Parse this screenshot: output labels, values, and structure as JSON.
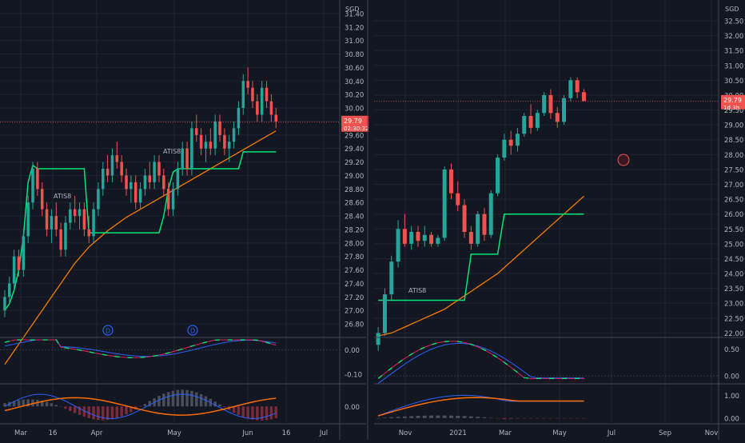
{
  "theme": {
    "background": "#131722",
    "grid": "#1f2433",
    "divider": "#434651",
    "axis_text": "#b2b5be",
    "up": "#26a69a",
    "down": "#ef5350",
    "supertrend": "#00e676",
    "ma": "#f57c00",
    "macd": "#2962ff",
    "signal": "#ff6d00",
    "price_label_bg": "#ef5350"
  },
  "chart_data": [
    {
      "type": "candlestick",
      "name": "daily",
      "currency": "SGD",
      "ylim": [
        26.6,
        31.6
      ],
      "y_ticks": [
        "31.40",
        "31.20",
        "31.00",
        "30.80",
        "30.60",
        "30.40",
        "30.20",
        "30.00",
        "29.80",
        "29.60",
        "29.40",
        "29.20",
        "29.00",
        "28.80",
        "28.60",
        "28.40",
        "28.20",
        "28.00",
        "27.80",
        "27.60",
        "27.40",
        "27.20",
        "27.00",
        "26.80"
      ],
      "x_ticks": [
        "Mar",
        "16",
        "Apr",
        "May",
        "Jun",
        "16",
        "Jul"
      ],
      "last_price": "29.79",
      "countdown": "02:30:32",
      "annotations": [
        "ATIS8",
        "ATIS8"
      ],
      "markers": [
        "D",
        "D"
      ],
      "candles": [
        [
          27.0,
          27.3,
          26.9,
          27.2
        ],
        [
          27.2,
          27.5,
          27.1,
          27.4
        ],
        [
          27.4,
          27.9,
          27.3,
          27.8
        ],
        [
          27.8,
          27.9,
          27.5,
          27.6
        ],
        [
          27.6,
          28.2,
          27.5,
          28.1
        ],
        [
          28.1,
          28.7,
          28.0,
          28.6
        ],
        [
          28.6,
          29.2,
          28.5,
          29.1
        ],
        [
          29.1,
          29.2,
          28.7,
          28.8
        ],
        [
          28.8,
          28.9,
          28.4,
          28.5
        ],
        [
          28.5,
          28.6,
          28.1,
          28.2
        ],
        [
          28.2,
          28.5,
          28.0,
          28.4
        ],
        [
          28.4,
          28.6,
          28.1,
          28.2
        ],
        [
          28.2,
          28.3,
          27.8,
          27.9
        ],
        [
          27.9,
          28.4,
          27.8,
          28.3
        ],
        [
          28.3,
          28.6,
          28.2,
          28.5
        ],
        [
          28.5,
          28.7,
          28.3,
          28.4
        ],
        [
          28.4,
          28.6,
          28.2,
          28.5
        ],
        [
          28.5,
          28.6,
          28.1,
          28.2
        ],
        [
          28.2,
          28.4,
          28.0,
          28.1
        ],
        [
          28.1,
          28.6,
          28.0,
          28.5
        ],
        [
          28.5,
          28.9,
          28.4,
          28.8
        ],
        [
          28.8,
          29.2,
          28.7,
          29.1
        ],
        [
          29.1,
          29.3,
          28.9,
          29.0
        ],
        [
          29.0,
          29.4,
          28.9,
          29.3
        ],
        [
          29.3,
          29.5,
          29.1,
          29.2
        ],
        [
          29.2,
          29.3,
          28.9,
          29.0
        ],
        [
          29.0,
          29.1,
          28.7,
          28.8
        ],
        [
          28.8,
          29.0,
          28.6,
          28.9
        ],
        [
          28.9,
          29.0,
          28.5,
          28.6
        ],
        [
          28.6,
          28.9,
          28.5,
          28.8
        ],
        [
          28.8,
          29.1,
          28.7,
          29.0
        ],
        [
          29.0,
          29.2,
          28.8,
          28.9
        ],
        [
          28.9,
          29.3,
          28.8,
          29.2
        ],
        [
          29.2,
          29.3,
          28.9,
          29.0
        ],
        [
          29.0,
          29.1,
          28.7,
          28.8
        ],
        [
          28.8,
          28.9,
          28.4,
          28.5
        ],
        [
          28.5,
          28.9,
          28.4,
          28.8
        ],
        [
          28.8,
          29.2,
          28.7,
          29.1
        ],
        [
          29.1,
          29.5,
          29.0,
          29.4
        ],
        [
          29.4,
          29.5,
          29.0,
          29.1
        ],
        [
          29.1,
          29.8,
          29.0,
          29.7
        ],
        [
          29.7,
          29.9,
          29.5,
          29.6
        ],
        [
          29.6,
          29.7,
          29.3,
          29.4
        ],
        [
          29.4,
          29.6,
          29.2,
          29.5
        ],
        [
          29.5,
          29.7,
          29.3,
          29.4
        ],
        [
          29.4,
          29.9,
          29.3,
          29.8
        ],
        [
          29.8,
          29.9,
          29.5,
          29.6
        ],
        [
          29.6,
          29.7,
          29.3,
          29.4
        ],
        [
          29.4,
          29.6,
          29.2,
          29.5
        ],
        [
          29.5,
          29.8,
          29.4,
          29.7
        ],
        [
          29.7,
          30.1,
          29.6,
          30.0
        ],
        [
          30.0,
          30.5,
          29.9,
          30.4
        ],
        [
          30.4,
          30.6,
          30.2,
          30.3
        ],
        [
          30.3,
          30.4,
          30.0,
          30.1
        ],
        [
          30.1,
          30.2,
          29.8,
          29.9
        ],
        [
          29.9,
          30.4,
          29.8,
          30.3
        ],
        [
          30.3,
          30.4,
          30.0,
          30.1
        ],
        [
          30.1,
          30.2,
          29.8,
          29.9
        ],
        [
          29.9,
          30.0,
          29.7,
          29.8
        ]
      ],
      "supertrend": [
        27.0,
        27.1,
        27.3,
        27.6,
        28.1,
        28.9,
        29.15,
        29.1,
        29.1,
        29.1,
        29.1,
        29.1,
        29.1,
        29.1,
        29.1,
        29.1,
        29.1,
        29.1,
        28.15,
        28.15,
        28.15,
        28.15,
        28.15,
        28.15,
        28.15,
        28.15,
        28.15,
        28.15,
        28.15,
        28.15,
        28.15,
        28.15,
        28.15,
        28.15,
        28.4,
        28.8,
        29.05,
        29.1,
        29.1,
        29.1,
        29.1,
        29.1,
        29.1,
        29.1,
        29.1,
        29.1,
        29.1,
        29.1,
        29.1,
        29.1,
        29.1,
        29.35,
        29.35,
        29.35,
        29.35,
        29.35,
        29.35,
        29.35,
        29.35
      ],
      "moving_average": [
        26.2,
        26.3,
        26.4,
        26.5,
        26.6,
        26.7,
        26.8,
        26.9,
        27.0,
        27.1,
        27.2,
        27.3,
        27.4,
        27.5,
        27.6,
        27.7,
        27.78,
        27.86,
        27.94,
        28.0,
        28.06,
        28.12,
        28.18,
        28.23,
        28.28,
        28.33,
        28.38,
        28.42,
        28.46,
        28.5,
        28.54,
        28.58,
        28.62,
        28.66,
        28.7,
        28.74,
        28.78,
        28.82,
        28.86,
        28.9,
        28.94,
        28.98,
        29.02,
        29.06,
        29.1,
        29.14,
        29.18,
        29.22,
        29.26,
        29.3,
        29.34,
        29.38,
        29.42,
        29.46,
        29.5,
        29.54,
        29.58,
        29.62,
        29.66
      ],
      "oscillator_1": {
        "y_ticks": [
          "0.00",
          "-0.10"
        ],
        "ylim": [
          -0.14,
          0.05
        ]
      },
      "oscillator_2": {
        "y_ticks": [
          "0.00"
        ],
        "ylim": [
          -0.1,
          0.13
        ]
      }
    },
    {
      "type": "candlestick",
      "name": "weekly",
      "currency": "SGD",
      "ylim": [
        21.85,
        33.2
      ],
      "y_ticks": [
        "32.50",
        "32.00",
        "31.50",
        "31.00",
        "30.50",
        "30.00",
        "29.50",
        "29.00",
        "28.50",
        "28.00",
        "27.50",
        "27.00",
        "26.50",
        "26.00",
        "25.50",
        "25.00",
        "24.50",
        "24.00",
        "23.50",
        "23.00",
        "22.50",
        "22.00"
      ],
      "x_ticks": [
        "Nov",
        "2021",
        "Mar",
        "May",
        "Jul",
        "Sep",
        "Nov"
      ],
      "last_price": "29.79",
      "countdown": "1d 3h",
      "annotations": [
        "ATIS8"
      ],
      "candles": [
        [
          21.6,
          22.2,
          21.4,
          22.0
        ],
        [
          22.0,
          23.5,
          21.9,
          23.3
        ],
        [
          23.3,
          24.6,
          23.1,
          24.4
        ],
        [
          24.4,
          25.8,
          24.2,
          25.5
        ],
        [
          25.5,
          26.0,
          24.9,
          25.0
        ],
        [
          25.0,
          25.6,
          24.8,
          25.4
        ],
        [
          25.4,
          25.6,
          24.9,
          25.1
        ],
        [
          25.1,
          25.6,
          24.9,
          25.3
        ],
        [
          25.3,
          25.4,
          24.9,
          25.0
        ],
        [
          25.0,
          25.3,
          24.9,
          25.2
        ],
        [
          25.2,
          27.6,
          25.1,
          27.5
        ],
        [
          27.5,
          27.7,
          26.5,
          26.7
        ],
        [
          26.7,
          27.1,
          26.1,
          26.3
        ],
        [
          26.3,
          26.5,
          25.2,
          25.4
        ],
        [
          25.4,
          25.6,
          24.8,
          25.0
        ],
        [
          25.0,
          26.1,
          24.9,
          26.0
        ],
        [
          26.0,
          26.2,
          25.1,
          25.3
        ],
        [
          25.3,
          26.8,
          25.2,
          26.7
        ],
        [
          26.7,
          28.0,
          26.6,
          27.9
        ],
        [
          27.9,
          28.7,
          27.8,
          28.5
        ],
        [
          28.5,
          28.8,
          28.0,
          28.3
        ],
        [
          28.3,
          28.9,
          28.1,
          28.7
        ],
        [
          28.7,
          29.4,
          28.6,
          29.3
        ],
        [
          29.3,
          29.7,
          28.7,
          28.9
        ],
        [
          28.9,
          29.5,
          28.8,
          29.4
        ],
        [
          29.4,
          30.1,
          29.3,
          30.0
        ],
        [
          30.0,
          30.2,
          29.2,
          29.4
        ],
        [
          29.4,
          29.6,
          28.9,
          29.1
        ],
        [
          29.1,
          30.0,
          29.0,
          29.9
        ],
        [
          29.9,
          30.6,
          29.8,
          30.5
        ],
        [
          30.5,
          30.6,
          29.9,
          30.1
        ],
        [
          30.1,
          30.2,
          29.8,
          29.8
        ]
      ],
      "supertrend": [
        23.1,
        23.1,
        23.1,
        23.1,
        23.1,
        23.1,
        23.1,
        23.1,
        23.1,
        23.1,
        23.1,
        23.1,
        23.1,
        23.1,
        24.65,
        24.65,
        24.65,
        24.65,
        24.65,
        26.0,
        26.0,
        26.0,
        26.0,
        26.0,
        26.0,
        26.0,
        26.0,
        26.0,
        26.0,
        26.0,
        26.0,
        26.0
      ],
      "supertrend_tail": [
        26.0,
        26.0,
        26.0,
        26.0,
        26.0,
        26.0,
        26.0,
        26.0,
        26.0,
        26.0,
        26.0,
        26.0,
        26.0,
        26.0,
        26.0,
        26.0,
        26.0,
        26.0,
        26.0,
        26.0,
        26.0,
        26.0,
        26.0,
        26.0,
        26.0,
        26.0,
        26.0,
        26.0,
        26.0,
        26.0,
        26.0,
        26.0
      ],
      "moving_average": [
        21.9,
        21.95,
        22.0,
        22.1,
        22.2,
        22.3,
        22.4,
        22.5,
        22.6,
        22.7,
        22.8,
        22.95,
        23.1,
        23.25,
        23.4,
        23.55,
        23.7,
        23.85,
        24.0,
        24.2,
        24.4,
        24.6,
        24.8,
        25.0,
        25.2,
        25.4,
        25.6,
        25.8,
        26.0,
        26.2,
        26.4,
        26.6
      ],
      "oscillator_1": {
        "y_ticks": [
          "0.50",
          "0.00"
        ],
        "ylim": [
          -0.15,
          0.72
        ]
      },
      "oscillator_2": {
        "y_ticks": [
          "1.00",
          "0.00"
        ],
        "ylim": [
          -0.25,
          1.5
        ]
      }
    }
  ]
}
